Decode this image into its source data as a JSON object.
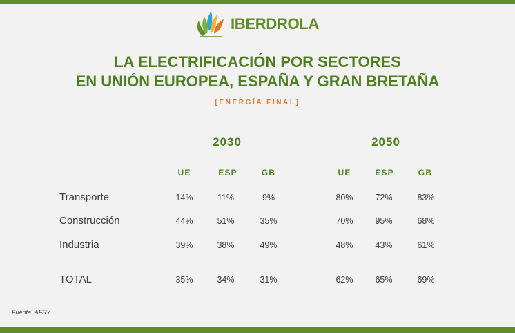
{
  "brand": {
    "name": "IBERDROLA",
    "colors": {
      "green": "#5f8d27",
      "dark_green": "#4f7f22",
      "orange": "#e8742b",
      "blue": "#2aa8d6",
      "yellow": "#f6b31b"
    }
  },
  "title": {
    "line1": "LA ELECTRIFICACIÓN POR SECTORES",
    "line2": "EN UNIÓN EUROPEA, ESPAÑA Y GRAN BRETAÑA"
  },
  "subtitle": "[ENERGÍA FINAL]",
  "table": {
    "years": [
      "2030",
      "2050"
    ],
    "columns": [
      "UE",
      "ESP",
      "GB",
      "UE",
      "ESP",
      "GB"
    ],
    "rows": [
      {
        "label": "Transporte",
        "values": [
          "14%",
          "11%",
          "9%",
          "80%",
          "72%",
          "83%"
        ]
      },
      {
        "label": "Construcción",
        "values": [
          "44%",
          "51%",
          "35%",
          "70%",
          "95%",
          "68%"
        ]
      },
      {
        "label": "Industria",
        "values": [
          "39%",
          "38%",
          "49%",
          "48%",
          "43%",
          "61%"
        ]
      }
    ],
    "total": {
      "label": "TOTAL",
      "values": [
        "35%",
        "34%",
        "31%",
        "62%",
        "65%",
        "69%"
      ]
    }
  },
  "source": "Fuente: AFRY."
}
